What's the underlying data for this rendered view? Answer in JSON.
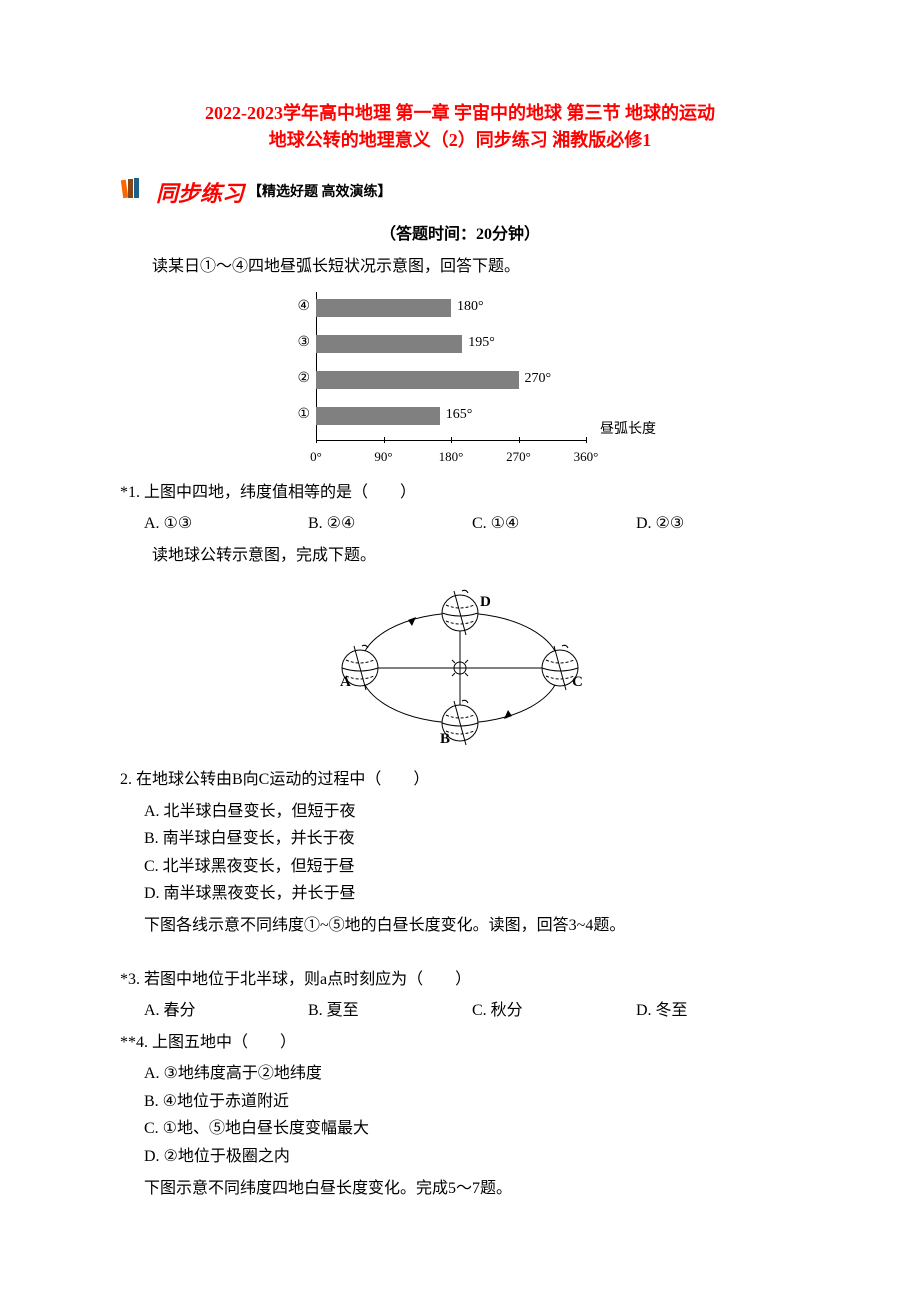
{
  "title": {
    "line1": "2022-2023学年高中地理 第一章 宇宙中的地球 第三节 地球的运动",
    "line2": "地球公转的地理意义（2）同步练习 湘教版必修1"
  },
  "banner": {
    "main": "同步练习",
    "sub": "【精选好题 高效演练】"
  },
  "time_note": "（答题时间：20分钟）",
  "instr1": "读某日①～④四地昼弧长短状况示意图，回答下题。",
  "bar_chart": {
    "type": "bar",
    "bars": [
      {
        "label": "④",
        "value": 180,
        "text": "180°"
      },
      {
        "label": "③",
        "value": 195,
        "text": "195°"
      },
      {
        "label": "②",
        "value": 270,
        "text": "270°"
      },
      {
        "label": "①",
        "value": 165,
        "text": "165°"
      }
    ],
    "x_ticks": [
      {
        "pos": 0,
        "label": "0°"
      },
      {
        "pos": 90,
        "label": "90°"
      },
      {
        "pos": 180,
        "label": "180°"
      },
      {
        "pos": 270,
        "label": "270°"
      },
      {
        "pos": 360,
        "label": "360°"
      }
    ],
    "x_title": "昼弧长度",
    "bar_color": "#808080",
    "max": 360
  },
  "q1": {
    "text": "*1. 上图中四地，纬度值相等的是（　　）",
    "A": "A. ①③",
    "B": "B. ②④",
    "C": "C. ①④",
    "D": "D. ②③"
  },
  "instr2": "读地球公转示意图，完成下题。",
  "orbit": {
    "labels": {
      "A": "A",
      "B": "B",
      "C": "C",
      "D": "D"
    }
  },
  "q2": {
    "text": "2. 在地球公转由B向C运动的过程中（　　）",
    "A": "A. 北半球白昼变长，但短于夜",
    "B": "B. 南半球白昼变长，并长于夜",
    "C": "C. 北半球黑夜变长，但短于昼",
    "D": "D. 南半球黑夜变长，并长于昼"
  },
  "instr3": "下图各线示意不同纬度①~⑤地的白昼长度变化。读图，回答3~4题。",
  "q3": {
    "text": "*3. 若图中地位于北半球，则a点时刻应为（　　）",
    "A": "A. 春分",
    "B": "B. 夏至",
    "C": "C. 秋分",
    "D": "D. 冬至"
  },
  "q4": {
    "text": "**4. 上图五地中（　　）",
    "A": "A. ③地纬度高于②地纬度",
    "B": "B. ④地位于赤道附近",
    "C": "C. ①地、⑤地白昼长度变幅最大",
    "D": "D. ②地位于极圈之内"
  },
  "instr4": "下图示意不同纬度四地白昼长度变化。完成5～7题。"
}
